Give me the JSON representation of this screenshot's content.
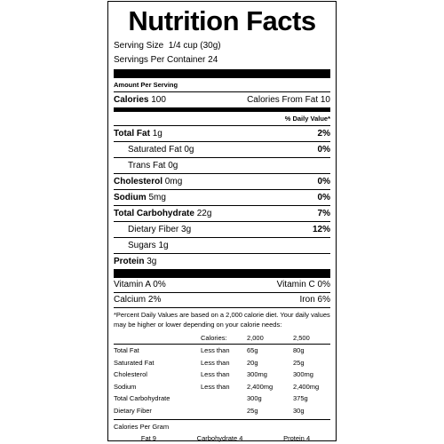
{
  "title": "Nutrition Facts",
  "serving_size_label": "Serving Size",
  "serving_size_value": "1/4 cup (30g)",
  "servings_label": "Servings Per Container",
  "servings_value": "24",
  "amount_per_serving": "Amount Per Serving",
  "calories_label": "Calories",
  "calories_value": "100",
  "calories_fat_label": "Calories From Fat",
  "calories_fat_value": "10",
  "dv_header": "% Daily Value*",
  "nutrients": [
    {
      "name": "Total Fat",
      "amount": "1g",
      "dv": "2%"
    },
    {
      "name": "Saturated Fat",
      "amount": "0g",
      "dv": "0%"
    },
    {
      "name": "Trans Fat",
      "amount": "0g",
      "dv": ""
    },
    {
      "name": "Cholesterol",
      "amount": "0mg",
      "dv": "0%"
    },
    {
      "name": "Sodium",
      "amount": "5mg",
      "dv": "0%"
    },
    {
      "name": "Total Carbohydrate",
      "amount": "22g",
      "dv": "7%"
    },
    {
      "name": "Dietary Fiber",
      "amount": "3g",
      "dv": "12%"
    },
    {
      "name": "Sugars",
      "amount": "1g",
      "dv": ""
    },
    {
      "name": "Protein",
      "amount": "3g",
      "dv": ""
    }
  ],
  "vitamins": [
    {
      "left_name": "Vitamin A",
      "left_dv": "0%",
      "right_name": "Vitamin C",
      "right_dv": "0%"
    },
    {
      "left_name": "Calcium",
      "left_dv": "2%",
      "right_name": "Iron",
      "right_dv": "6%"
    }
  ],
  "footnote": "*Percent Daily Values are based on a 2,000 calorie diet. Your daily values may be higher or lower depending on your calorie needs:",
  "footnote_table": {
    "header": [
      "",
      "Calories:",
      "2,000",
      "2,500"
    ],
    "rows": [
      [
        "Total Fat",
        "Less than",
        "65g",
        "80g"
      ],
      [
        "Saturated Fat",
        "Less than",
        "20g",
        "25g"
      ],
      [
        "Cholesterol",
        "Less than",
        "300mg",
        "300mg"
      ],
      [
        "Sodium",
        "Less than",
        "2,400mg",
        "2,400mg"
      ],
      [
        "Total Carbohydrate",
        "",
        "300g",
        "375g"
      ],
      [
        "Dietary Fiber",
        "",
        "25g",
        "30g"
      ]
    ]
  },
  "calories_per_gram_label": "Calories Per Gram",
  "calories_per_gram": [
    "Fat 9",
    "Carbohydrate 4",
    "Protein 4"
  ]
}
